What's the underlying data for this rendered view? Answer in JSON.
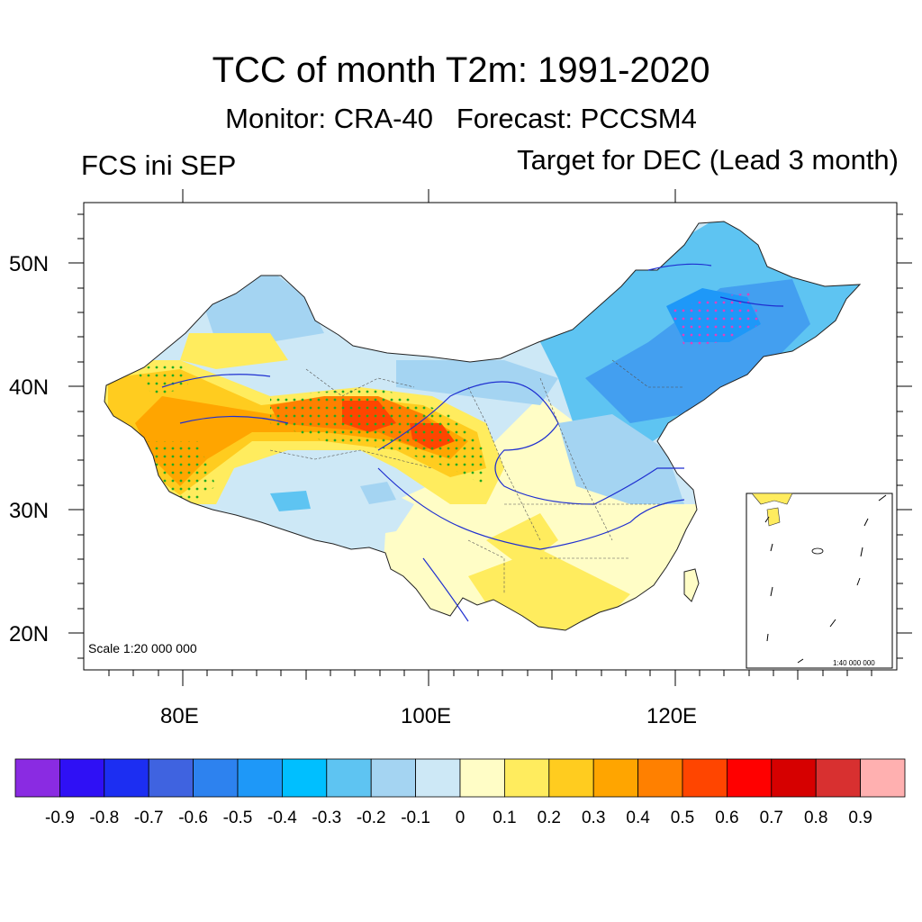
{
  "title": "TCC of month T2m: 1991-2020",
  "subtitle": "Monitor: CRA-40   Forecast: PCCSM4",
  "left_subtitle": "FCS ini SEP",
  "right_subtitle": "Target for DEC (Lead 3 month)",
  "map": {
    "scale_label": "Scale 1:20 000 000",
    "inset_scale_label": "1:40 000 000",
    "lat_labels": [
      "50N",
      "40N",
      "30N",
      "20N"
    ],
    "lon_labels": [
      "80E",
      "100E",
      "120E"
    ]
  },
  "colorbar": {
    "colors": [
      "#8a2be2",
      "#2f10f5",
      "#1c2ef2",
      "#3f63e0",
      "#2d82ef",
      "#1e98f8",
      "#00bfff",
      "#5ec4f2",
      "#a4d4f2",
      "#cde8f6",
      "#fffdc6",
      "#ffec5e",
      "#ffcc1f",
      "#ffa500",
      "#ff8000",
      "#ff4500",
      "#ff0000",
      "#d60000",
      "#d83030",
      "#ffb0b0"
    ],
    "labels": [
      "-0.9",
      "-0.8",
      "-0.7",
      "-0.6",
      "-0.5",
      "-0.4",
      "-0.3",
      "-0.2",
      "-0.1",
      "0",
      "0.1",
      "0.2",
      "0.3",
      "0.4",
      "0.5",
      "0.6",
      "0.7",
      "0.8",
      "0.9"
    ]
  }
}
